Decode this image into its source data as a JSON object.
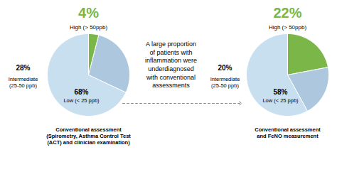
{
  "chart_data": [
    {
      "type": "pie",
      "categories": [
        "High (> 50ppb)",
        "Intermediate\n(25-50 ppb)",
        "Low (< 25 ppb)"
      ],
      "values": [
        4,
        28,
        68
      ],
      "value_labels": [
        "4%",
        "28%",
        "68%"
      ],
      "colors": [
        "#7ab648",
        "#adc8de",
        "#c8dff0"
      ],
      "data_labels": true,
      "caption": "Conventional assessment\n(Spirometry, Asthma Control Test\n(ACT) and clinician examination)"
    },
    {
      "type": "pie",
      "categories": [
        "High (> 50ppb)",
        "Intermediate\n(25-50 ppb)",
        "Low (< 25 ppb)"
      ],
      "values": [
        22,
        20,
        58
      ],
      "value_labels": [
        "22%",
        "20%",
        "58%"
      ],
      "colors": [
        "#7ab648",
        "#adc8de",
        "#c8dff0"
      ],
      "data_labels": true,
      "caption": "Conventional assessment\nand FeNO measurement"
    }
  ],
  "annotations": [
    "A large proportion\nof patients with\ninflammation were\nunderdiagnosed\nwith conventional\nassessments"
  ]
}
